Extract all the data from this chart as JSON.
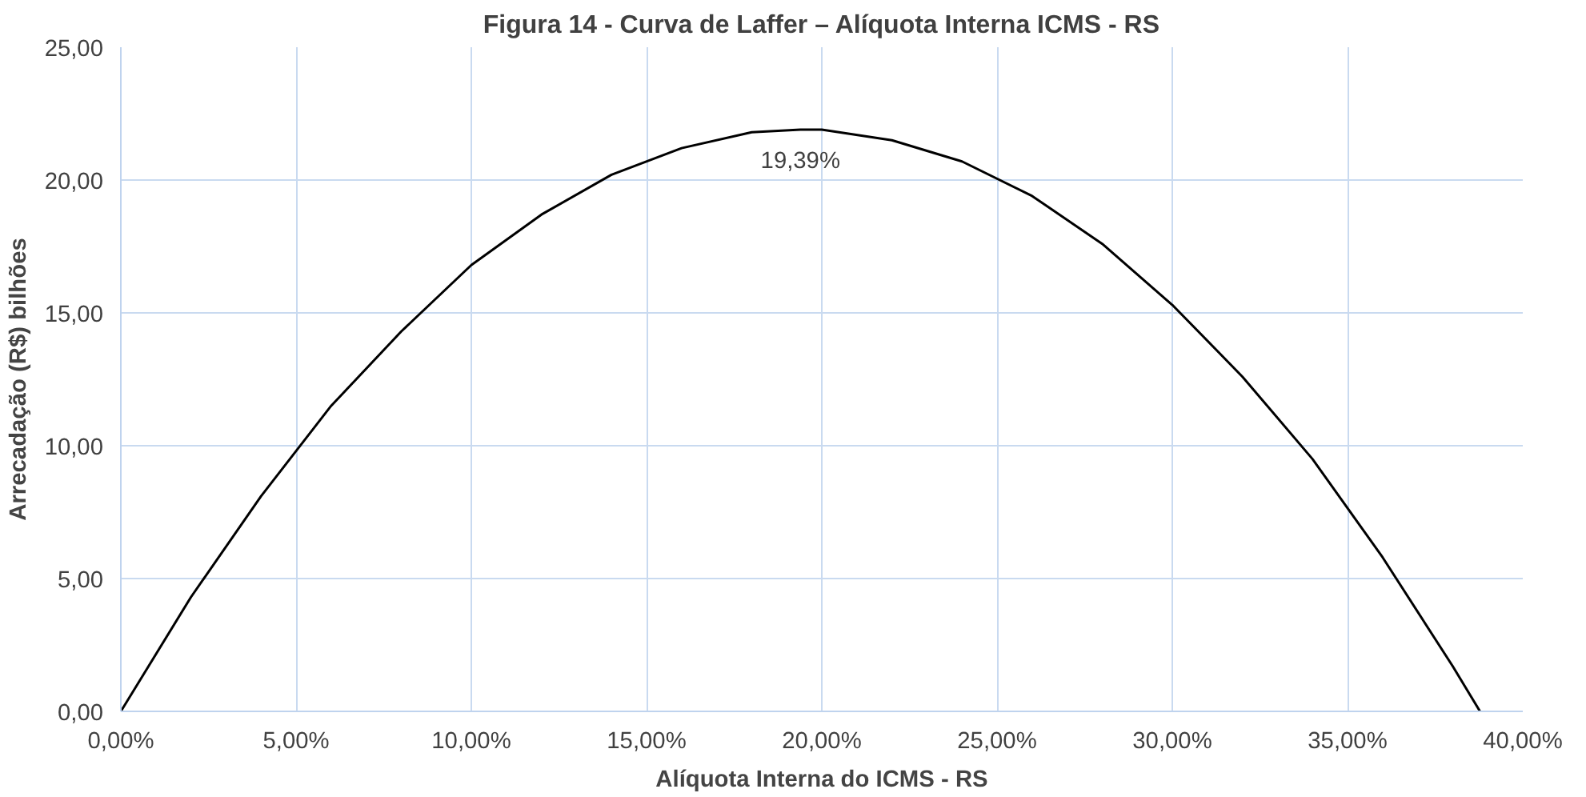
{
  "chart_data": {
    "type": "line",
    "title": "Figura 14 - Curva de Laffer – Alíquota Interna ICMS - RS",
    "xlabel": "Alíquota Interna do ICMS - RS",
    "ylabel": "Arrecadação (R$) bilhões",
    "series": [
      {
        "color": "#000000",
        "x": [
          0,
          2,
          4,
          6,
          8,
          10,
          12,
          14,
          16,
          18,
          19.39,
          20,
          22,
          24,
          26,
          28,
          30,
          32,
          34,
          36,
          38,
          38.78
        ],
        "values": [
          0,
          4.3,
          8.1,
          11.5,
          14.3,
          16.8,
          18.7,
          20.2,
          21.2,
          21.8,
          21.9,
          21.9,
          21.5,
          20.7,
          19.4,
          17.6,
          15.3,
          12.6,
          9.5,
          5.8,
          1.7,
          0
        ]
      }
    ],
    "xlim": [
      0,
      40
    ],
    "ylim": [
      0,
      25
    ],
    "xticks": [
      {
        "value": 0,
        "label": "0,00%"
      },
      {
        "value": 5,
        "label": "5,00%"
      },
      {
        "value": 10,
        "label": "10,00%"
      },
      {
        "value": 15,
        "label": "15,00%"
      },
      {
        "value": 20,
        "label": "20,00%"
      },
      {
        "value": 25,
        "label": "25,00%"
      },
      {
        "value": 30,
        "label": "30,00%"
      },
      {
        "value": 35,
        "label": "35,00%"
      },
      {
        "value": 40,
        "label": "40,00%"
      }
    ],
    "yticks": [
      {
        "value": 0,
        "label": "0,00"
      },
      {
        "value": 5,
        "label": "5,00"
      },
      {
        "value": 10,
        "label": "10,00"
      },
      {
        "value": 15,
        "label": "15,00"
      },
      {
        "value": 20,
        "label": "20,00"
      },
      {
        "value": 25,
        "label": "25,00"
      }
    ],
    "annotations": [
      {
        "text": "19,39%",
        "x": 19.39,
        "y": 21.9
      }
    ],
    "grid": true,
    "marker": "none",
    "line_style": "solid"
  }
}
